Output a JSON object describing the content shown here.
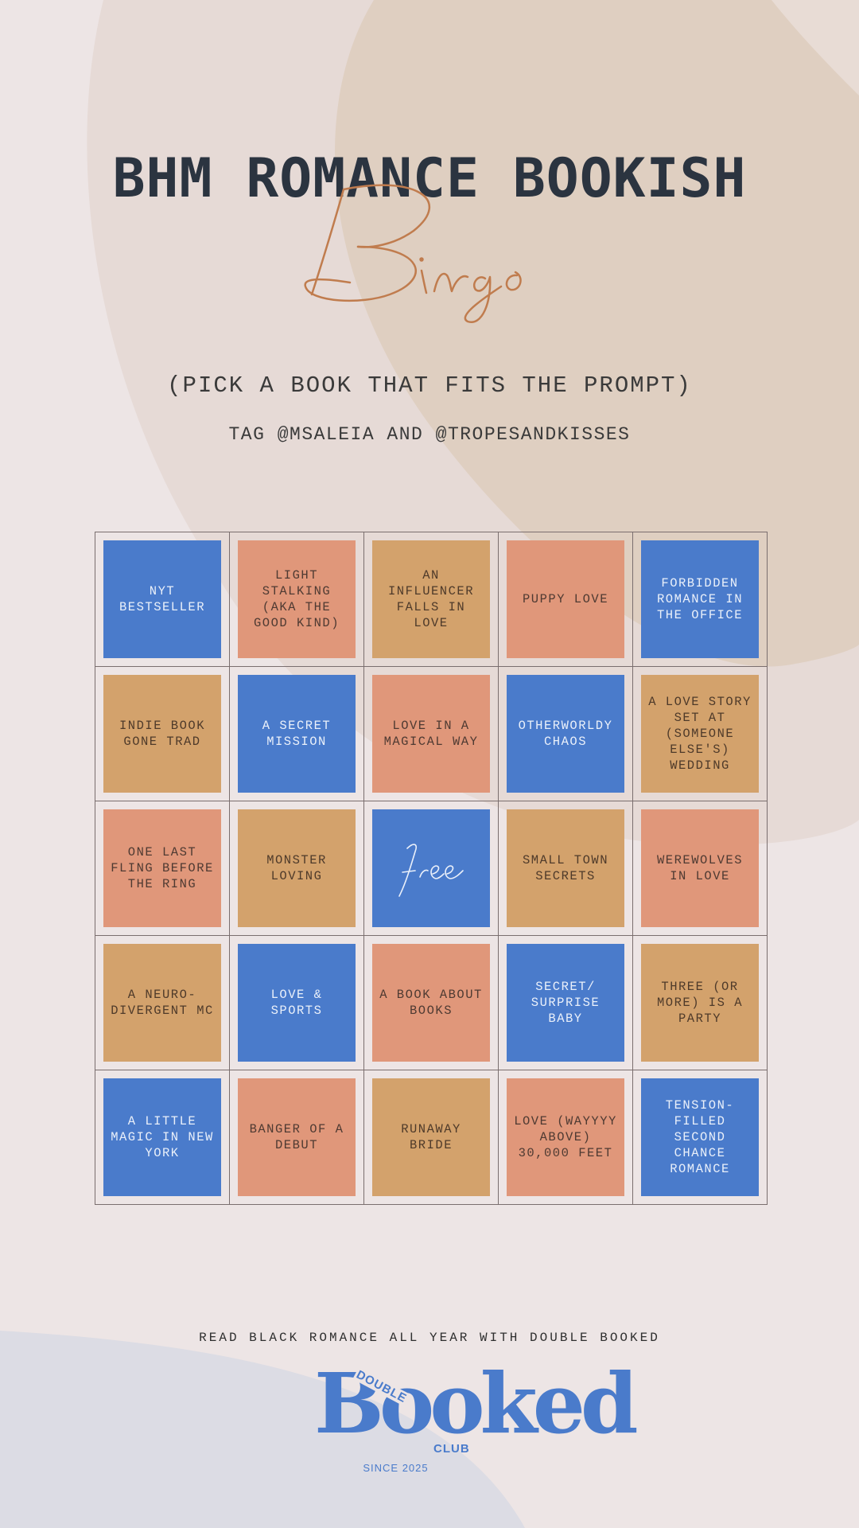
{
  "header": {
    "title": "BHM ROMANCE BOOKISH",
    "script_word": "Bingo",
    "subtitle": "(PICK A BOOK THAT FITS THE PROMPT)",
    "tagline": "TAG @MSALEIA AND @TROPESANDKISSES"
  },
  "colors": {
    "blue": "#4A7BCB",
    "salmon": "#E0977A",
    "tan": "#D3A26C",
    "accent_script": "#C07C4E",
    "title": "#2B3440"
  },
  "bingo": {
    "rows": [
      [
        {
          "text": "NYT BESTSELLER",
          "color": "blue"
        },
        {
          "text": "LIGHT STALKING (AKA THE GOOD KIND)",
          "color": "salmon"
        },
        {
          "text": "AN INFLUENCER FALLS IN LOVE",
          "color": "tan"
        },
        {
          "text": "PUPPY LOVE",
          "color": "salmon"
        },
        {
          "text": "FORBIDDEN ROMANCE IN THE OFFICE",
          "color": "blue"
        }
      ],
      [
        {
          "text": "INDIE BOOK GONE TRAD",
          "color": "tan"
        },
        {
          "text": "A SECRET MISSION",
          "color": "blue"
        },
        {
          "text": "LOVE IN A MAGICAL WAY",
          "color": "salmon"
        },
        {
          "text": "OTHERWORLDY CHAOS",
          "color": "blue"
        },
        {
          "text": "A LOVE STORY SET AT (SOMEONE ELSE'S) WEDDING",
          "color": "tan"
        }
      ],
      [
        {
          "text": "ONE LAST FLING BEFORE THE RING",
          "color": "salmon"
        },
        {
          "text": "MONSTER LOVING",
          "color": "tan"
        },
        {
          "text": "free",
          "color": "blue",
          "free": true
        },
        {
          "text": "SMALL TOWN SECRETS",
          "color": "tan"
        },
        {
          "text": "WEREWOLVES IN LOVE",
          "color": "salmon"
        }
      ],
      [
        {
          "text": "A NEURO-DIVERGENT MC",
          "color": "tan"
        },
        {
          "text": "LOVE & SPORTS",
          "color": "blue"
        },
        {
          "text": "A BOOK ABOUT BOOKS",
          "color": "salmon"
        },
        {
          "text": "SECRET/ SURPRISE BABY",
          "color": "blue"
        },
        {
          "text": "THREE (OR MORE) IS A PARTY",
          "color": "tan"
        }
      ],
      [
        {
          "text": "A LITTLE MAGIC IN NEW YORK",
          "color": "blue"
        },
        {
          "text": "BANGER OF A DEBUT",
          "color": "salmon"
        },
        {
          "text": "RUNAWAY BRIDE",
          "color": "tan"
        },
        {
          "text": "LOVE (WAYYYY ABOVE) 30,000 FEET",
          "color": "salmon"
        },
        {
          "text": "TENSION-FILLED SECOND CHANCE ROMANCE",
          "color": "blue"
        }
      ]
    ]
  },
  "footer": {
    "text": "READ BLACK ROMANCE ALL YEAR WITH DOUBLE BOOKED",
    "logo_main": "Booked",
    "logo_top": "DOUBLE",
    "logo_bottom": "CLUB",
    "since": "SINCE 2025"
  }
}
